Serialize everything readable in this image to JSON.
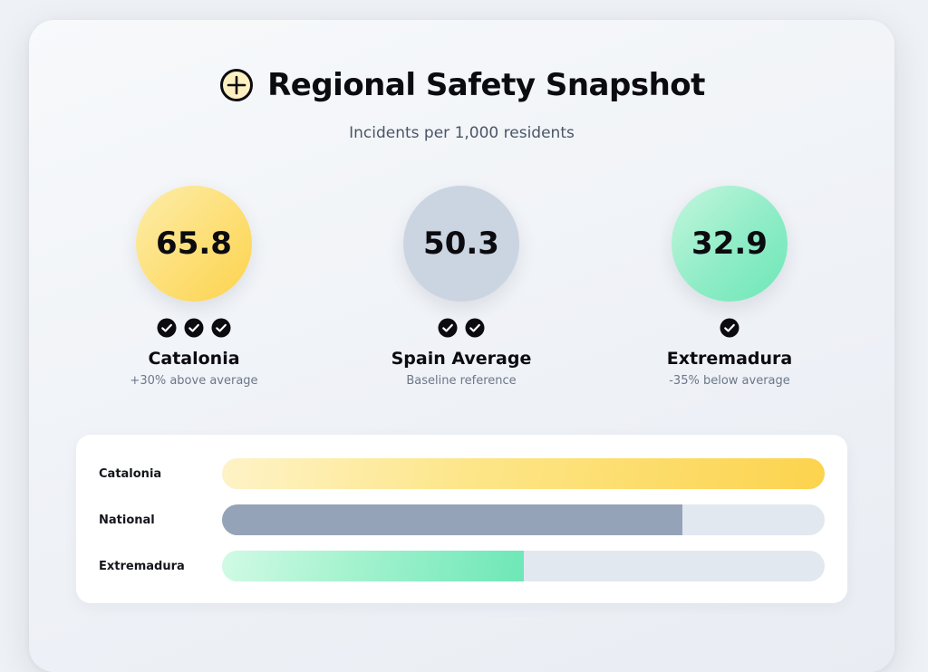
{
  "header": {
    "icon": "plus-circle-icon",
    "title": "Regional Safety Snapshot",
    "subtitle": "Incidents per 1,000 residents"
  },
  "stats": [
    {
      "value": "65.8",
      "label": "Catalonia",
      "note": "+30% above average",
      "checks": 3,
      "color": "#fcd34d"
    },
    {
      "value": "50.3",
      "label": "Spain Average",
      "note": "Baseline reference",
      "checks": 2,
      "color": "#cbd5e1"
    },
    {
      "value": "32.9",
      "label": "Extremadura",
      "note": "-35% below average",
      "checks": 1,
      "color": "#6ee7b7"
    }
  ],
  "bars": {
    "max": 65.8,
    "rows": [
      {
        "label": "Catalonia",
        "value": 65.8,
        "color": "#fcd34d"
      },
      {
        "label": "National",
        "value": 50.3,
        "color": "#94a3b8"
      },
      {
        "label": "Extremadura",
        "value": 32.9,
        "color": "#6ee7b7"
      }
    ]
  }
}
